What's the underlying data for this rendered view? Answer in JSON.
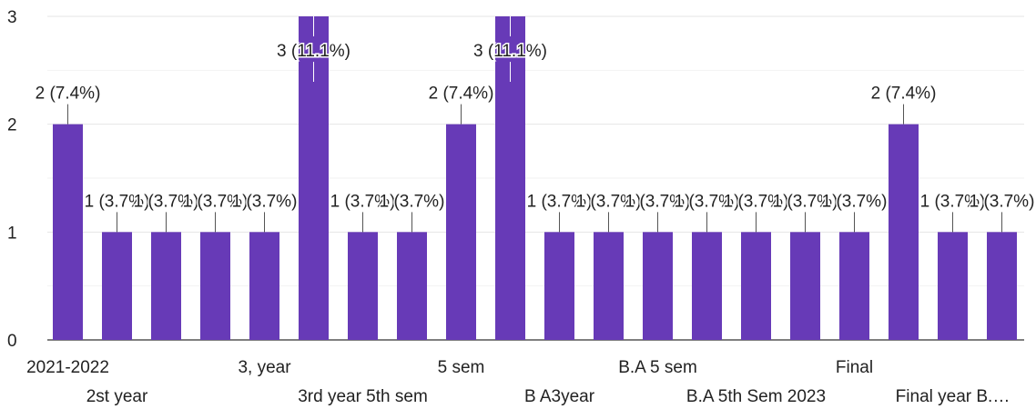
{
  "chart_data": {
    "type": "bar",
    "colors": {
      "bar": "#673AB7",
      "grid": "#e6e6e6",
      "text": "#222222"
    },
    "categories": [
      "2021-2022",
      "2st year",
      "",
      "",
      "3, year",
      "",
      "3rd year 5th sem",
      "",
      "5 sem",
      "",
      "B A3year",
      "",
      "B.A 5 sem",
      "",
      "B.A 5th Sem 2023",
      "",
      "Final",
      "",
      "Final year B.…",
      ""
    ],
    "values": [
      2,
      1,
      1,
      1,
      1,
      3,
      1,
      1,
      2,
      3,
      1,
      1,
      1,
      1,
      1,
      1,
      1,
      2,
      1,
      1
    ],
    "data_labels": [
      "2 (7.4%)",
      "1 (3.7%)",
      "1 (3.7%)",
      "1 (3.7%)",
      "1 (3.7%)",
      "3 (11.1%)",
      "1 (3.7%)",
      "1 (3.7%)",
      "2 (7.4%)",
      "3 (11.1%)",
      "1 (3.7%)",
      "1 (3.7%)",
      "1 (3.7%)",
      "1 (3.7%)",
      "1 (3.7%)",
      "1 (3.7%)",
      "1 (3.7%)",
      "2 (7.4%)",
      "1 (3.7%)",
      "1 (3.7%)"
    ],
    "yticks": [
      0,
      1,
      2,
      3
    ],
    "ylim": [
      0,
      3
    ],
    "grid": true,
    "title": "",
    "xlabel": "",
    "ylabel": ""
  }
}
